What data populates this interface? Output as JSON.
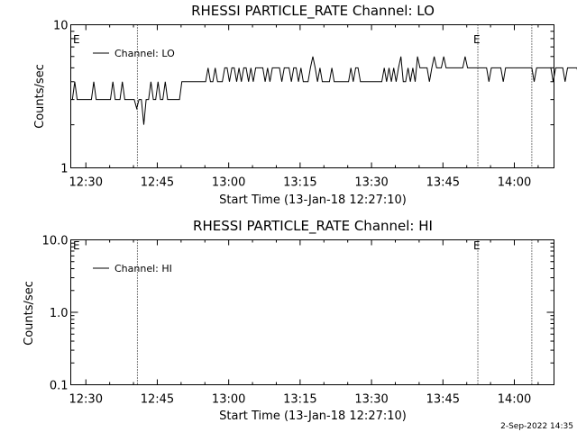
{
  "footer_timestamp": "2-Sep-2022 14:35",
  "colors": {
    "line": "#000000",
    "background": "#ffffff"
  },
  "chart_data": [
    {
      "type": "line",
      "title": "RHESSI PARTICLE_RATE Channel: LO",
      "xlabel": "Start Time (13-Jan-18 12:27:10)",
      "ylabel": "Counts/sec",
      "y_scale": "log",
      "ylim": [
        1,
        10
      ],
      "y_ticks": [
        "10",
        "1"
      ],
      "xlim_minutes": [
        -3.17,
        98.33
      ],
      "x_ticks": [
        "12:30",
        "12:45",
        "13:00",
        "13:15",
        "13:30",
        "13:45",
        "14:00"
      ],
      "legend": {
        "placement": "top-left",
        "entries": [
          "Channel: LO"
        ]
      },
      "event_markers": [
        {
          "label": "E",
          "time": "12:27:10"
        },
        {
          "label": "E",
          "time": "13:52:20"
        }
      ],
      "vertical_lines": [
        "12:40:50",
        "13:52:20",
        "14:03:40"
      ],
      "series": [
        {
          "name": "Channel: LO",
          "x_start": "12:27:10",
          "x_step_minutes": 0.5,
          "values": [
            3,
            4,
            3,
            3,
            3,
            3,
            3,
            3,
            3,
            4,
            3,
            3,
            3,
            3,
            3,
            3,
            3,
            4,
            3,
            3,
            3,
            4,
            3,
            3,
            3,
            3,
            3,
            2.6,
            3,
            3,
            2,
            3,
            3,
            4,
            3,
            3,
            4,
            3,
            3,
            4,
            3,
            3,
            3,
            3,
            3,
            3,
            4,
            4,
            4,
            4,
            4,
            4,
            4,
            4,
            4,
            4,
            4,
            5,
            4,
            4,
            5,
            4,
            4,
            4,
            5,
            5,
            4,
            5,
            5,
            4,
            5,
            4,
            5,
            5,
            4,
            5,
            4,
            5,
            5,
            5,
            5,
            4,
            5,
            4,
            5,
            5,
            5,
            5,
            4,
            5,
            5,
            5,
            4,
            5,
            5,
            4,
            5,
            4,
            4,
            4,
            5,
            6,
            5,
            4,
            5,
            4,
            4,
            4,
            4,
            5,
            4,
            4,
            4,
            4,
            4,
            4,
            4,
            5,
            4,
            5,
            5,
            4,
            4,
            4,
            4,
            4,
            4,
            4,
            4,
            4,
            4,
            5,
            4,
            5,
            4,
            5,
            4,
            5,
            6,
            4,
            4,
            5,
            4,
            5,
            4,
            6,
            5,
            5,
            5,
            5,
            4,
            5,
            6,
            5,
            5,
            5,
            6,
            5,
            5,
            5,
            5,
            5,
            5,
            5,
            5,
            6,
            5,
            5,
            5,
            5,
            5,
            5,
            5,
            5,
            5,
            4,
            5,
            5,
            5,
            5,
            5,
            4,
            5,
            5,
            5,
            5,
            5,
            5,
            5,
            5,
            5,
            5,
            5,
            5,
            4,
            5,
            5,
            5,
            5,
            5,
            5,
            5,
            4,
            5,
            5,
            5,
            5,
            4,
            5,
            5,
            5,
            5,
            5,
            4,
            5,
            5,
            5,
            5,
            5,
            5,
            5,
            5,
            5,
            5,
            5,
            5,
            5,
            5,
            5,
            5,
            4,
            4,
            4,
            5,
            5,
            5,
            5,
            5,
            5,
            5,
            5,
            4,
            4,
            4,
            4,
            5,
            5,
            5,
            4,
            5,
            5,
            5,
            5,
            5,
            4,
            5,
            5,
            5,
            5,
            5,
            5,
            5,
            5,
            4,
            4,
            4,
            4,
            4,
            5,
            4,
            4,
            4,
            4,
            4,
            4,
            4,
            5,
            6,
            4,
            6,
            5,
            5,
            6,
            4,
            4,
            5,
            5,
            4,
            4,
            4,
            4,
            4,
            5,
            4,
            4,
            5,
            4,
            4,
            5,
            3,
            4,
            4,
            4,
            5,
            5,
            5,
            5,
            4,
            4,
            4,
            4,
            3,
            4,
            4,
            3,
            3,
            4,
            4,
            3,
            3,
            4,
            4,
            4
          ]
        }
      ]
    },
    {
      "type": "line",
      "title": "RHESSI PARTICLE_RATE Channel: HI",
      "xlabel": "Start Time (13-Jan-18 12:27:10)",
      "ylabel": "Counts/sec",
      "y_scale": "log",
      "ylim": [
        0.1,
        10
      ],
      "y_ticks": [
        "10.0",
        "1.0",
        "0.1"
      ],
      "xlim_minutes": [
        -3.17,
        98.33
      ],
      "x_ticks": [
        "12:30",
        "12:45",
        "13:00",
        "13:15",
        "13:30",
        "13:45",
        "14:00"
      ],
      "legend": {
        "placement": "top-left",
        "entries": [
          "Channel: HI"
        ]
      },
      "event_markers": [
        {
          "label": "E",
          "time": "12:27:10"
        },
        {
          "label": "E",
          "time": "13:52:20"
        }
      ],
      "vertical_lines": [
        "12:40:50",
        "13:52:20",
        "14:03:40"
      ],
      "series": [
        {
          "name": "Channel: HI",
          "values": []
        }
      ]
    }
  ]
}
